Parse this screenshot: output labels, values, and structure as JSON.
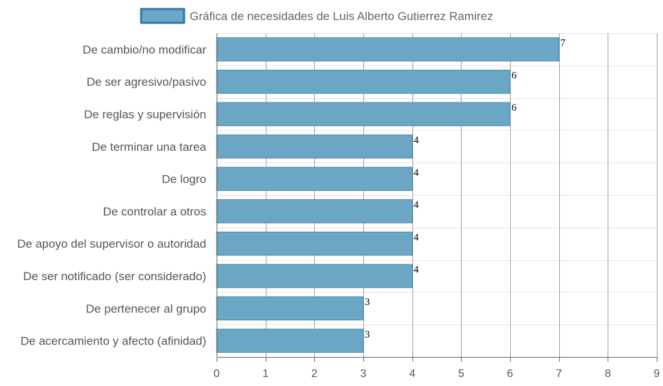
{
  "chart_data": {
    "type": "bar",
    "orientation": "horizontal",
    "categories": [
      "De cambio/no modificar",
      "De ser agresivo/pasivo",
      "De reglas y supervisión",
      "De terminar una tarea",
      "De logro",
      "De controlar a otros",
      "De apoyo del supervisor o autoridad",
      "De ser notificado (ser considerado)",
      "De pertenecer al grupo",
      "De acercamiento y afecto (afinidad)"
    ],
    "series": [
      {
        "name": "Gráfica de necesidades de Luis Alberto Gutierrez Ramirez",
        "values": [
          7,
          6,
          6,
          4,
          4,
          4,
          4,
          4,
          3,
          3
        ]
      }
    ],
    "xlim": [
      0,
      9
    ],
    "x_ticks": [
      "0",
      "1",
      "2",
      "3",
      "4",
      "5",
      "6",
      "7",
      "8",
      "9"
    ],
    "grid": true,
    "legend_position": "top-center",
    "data_labels": true,
    "bar_fill": "#6ba6c5",
    "bar_border": "#4a8ab0",
    "legend_border": "#2f7aa8"
  }
}
